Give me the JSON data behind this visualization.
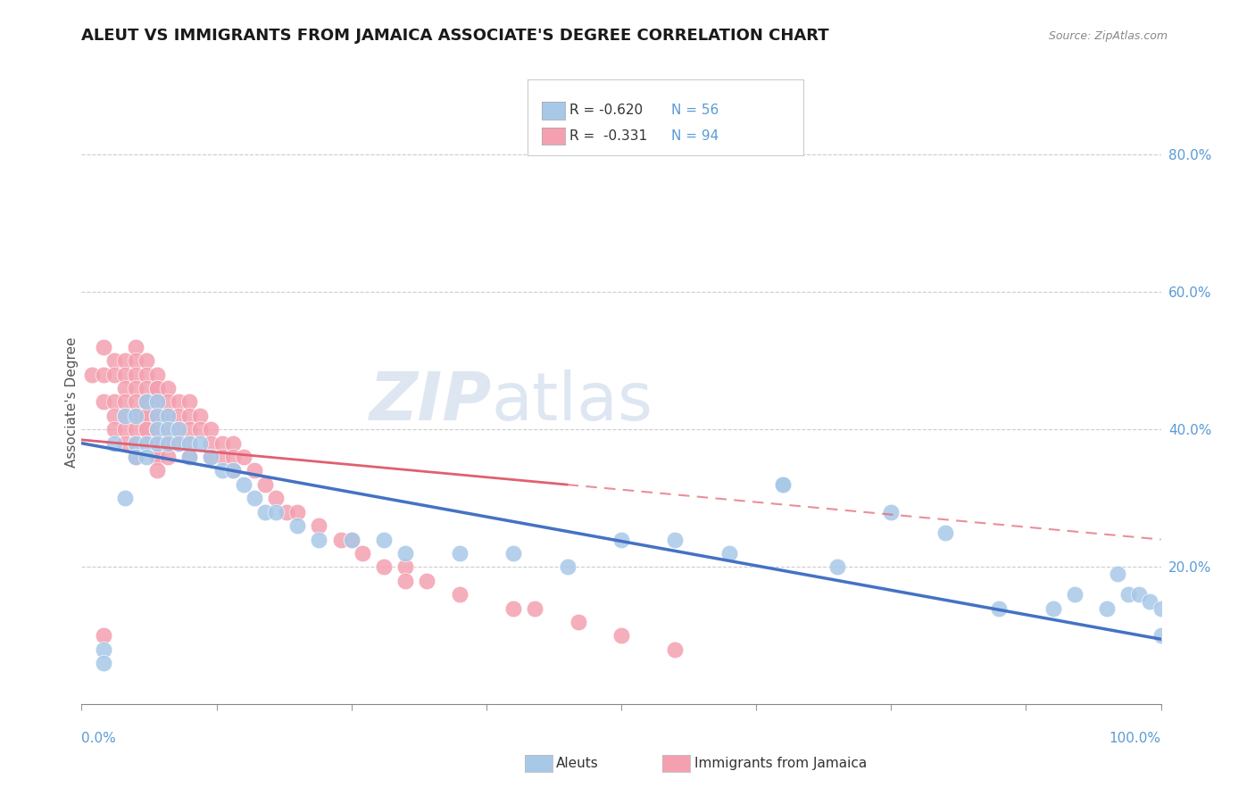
{
  "title": "ALEUT VS IMMIGRANTS FROM JAMAICA ASSOCIATE'S DEGREE CORRELATION CHART",
  "source": "Source: ZipAtlas.com",
  "ylabel": "Associate's Degree",
  "right_yticks": [
    "80.0%",
    "60.0%",
    "40.0%",
    "20.0%"
  ],
  "right_ytick_vals": [
    0.8,
    0.6,
    0.4,
    0.2
  ],
  "legend_label_aleuts": "Aleuts",
  "legend_label_jamaica": "Immigrants from Jamaica",
  "aleuts_color": "#a8c8e8",
  "jamaica_color": "#f4a0b0",
  "aleuts_line_color": "#4472c4",
  "jamaica_line_color": "#e06070",
  "jamaica_line_solid_color": "#e06070",
  "watermark_zip": "ZIP",
  "watermark_atlas": "atlas",
  "aleuts_x": [
    0.02,
    0.02,
    0.03,
    0.04,
    0.04,
    0.05,
    0.05,
    0.05,
    0.06,
    0.06,
    0.06,
    0.07,
    0.07,
    0.07,
    0.07,
    0.08,
    0.08,
    0.08,
    0.09,
    0.09,
    0.1,
    0.1,
    0.11,
    0.12,
    0.13,
    0.14,
    0.15,
    0.16,
    0.17,
    0.18,
    0.2,
    0.22,
    0.25,
    0.28,
    0.3,
    0.35,
    0.4,
    0.45,
    0.5,
    0.55,
    0.6,
    0.65,
    0.65,
    0.7,
    0.75,
    0.8,
    0.85,
    0.9,
    0.92,
    0.95,
    0.96,
    0.97,
    0.98,
    0.99,
    1.0,
    1.0
  ],
  "aleuts_y": [
    0.08,
    0.06,
    0.38,
    0.3,
    0.42,
    0.42,
    0.38,
    0.36,
    0.44,
    0.38,
    0.36,
    0.44,
    0.42,
    0.4,
    0.38,
    0.42,
    0.4,
    0.38,
    0.4,
    0.38,
    0.38,
    0.36,
    0.38,
    0.36,
    0.34,
    0.34,
    0.32,
    0.3,
    0.28,
    0.28,
    0.26,
    0.24,
    0.24,
    0.24,
    0.22,
    0.22,
    0.22,
    0.2,
    0.24,
    0.24,
    0.22,
    0.32,
    0.32,
    0.2,
    0.28,
    0.25,
    0.14,
    0.14,
    0.16,
    0.14,
    0.19,
    0.16,
    0.16,
    0.15,
    0.14,
    0.1
  ],
  "jamaica_x": [
    0.01,
    0.02,
    0.02,
    0.02,
    0.02,
    0.03,
    0.03,
    0.03,
    0.03,
    0.03,
    0.04,
    0.04,
    0.04,
    0.04,
    0.04,
    0.04,
    0.04,
    0.05,
    0.05,
    0.05,
    0.05,
    0.05,
    0.05,
    0.05,
    0.05,
    0.05,
    0.06,
    0.06,
    0.06,
    0.06,
    0.06,
    0.06,
    0.06,
    0.06,
    0.06,
    0.06,
    0.07,
    0.07,
    0.07,
    0.07,
    0.07,
    0.07,
    0.07,
    0.07,
    0.07,
    0.07,
    0.07,
    0.07,
    0.07,
    0.08,
    0.08,
    0.08,
    0.08,
    0.08,
    0.08,
    0.09,
    0.09,
    0.09,
    0.09,
    0.1,
    0.1,
    0.1,
    0.1,
    0.1,
    0.11,
    0.11,
    0.12,
    0.12,
    0.12,
    0.13,
    0.13,
    0.14,
    0.14,
    0.14,
    0.15,
    0.16,
    0.17,
    0.18,
    0.19,
    0.2,
    0.22,
    0.24,
    0.25,
    0.26,
    0.28,
    0.3,
    0.3,
    0.32,
    0.35,
    0.4,
    0.42,
    0.46,
    0.5,
    0.55
  ],
  "jamaica_y": [
    0.48,
    0.52,
    0.48,
    0.44,
    0.1,
    0.5,
    0.48,
    0.44,
    0.42,
    0.4,
    0.5,
    0.48,
    0.46,
    0.44,
    0.42,
    0.4,
    0.38,
    0.52,
    0.5,
    0.48,
    0.46,
    0.44,
    0.42,
    0.4,
    0.38,
    0.36,
    0.5,
    0.48,
    0.46,
    0.44,
    0.44,
    0.42,
    0.42,
    0.4,
    0.4,
    0.38,
    0.48,
    0.46,
    0.46,
    0.44,
    0.42,
    0.42,
    0.4,
    0.4,
    0.38,
    0.38,
    0.36,
    0.36,
    0.34,
    0.46,
    0.44,
    0.42,
    0.4,
    0.38,
    0.36,
    0.44,
    0.42,
    0.4,
    0.38,
    0.44,
    0.42,
    0.4,
    0.38,
    0.36,
    0.42,
    0.4,
    0.4,
    0.38,
    0.36,
    0.38,
    0.36,
    0.38,
    0.36,
    0.34,
    0.36,
    0.34,
    0.32,
    0.3,
    0.28,
    0.28,
    0.26,
    0.24,
    0.24,
    0.22,
    0.2,
    0.2,
    0.18,
    0.18,
    0.16,
    0.14,
    0.14,
    0.12,
    0.1,
    0.08
  ],
  "xlim": [
    0.0,
    1.0
  ],
  "ylim": [
    0.0,
    0.88
  ],
  "bg_color": "#ffffff",
  "grid_color": "#cccccc",
  "aleuts_trend_x0": 0.0,
  "aleuts_trend_y0": 0.38,
  "aleuts_trend_x1": 1.0,
  "aleuts_trend_y1": 0.095,
  "jamaica_trend_x0": 0.0,
  "jamaica_trend_y0": 0.385,
  "jamaica_trend_x1": 1.0,
  "jamaica_trend_y1": 0.24
}
